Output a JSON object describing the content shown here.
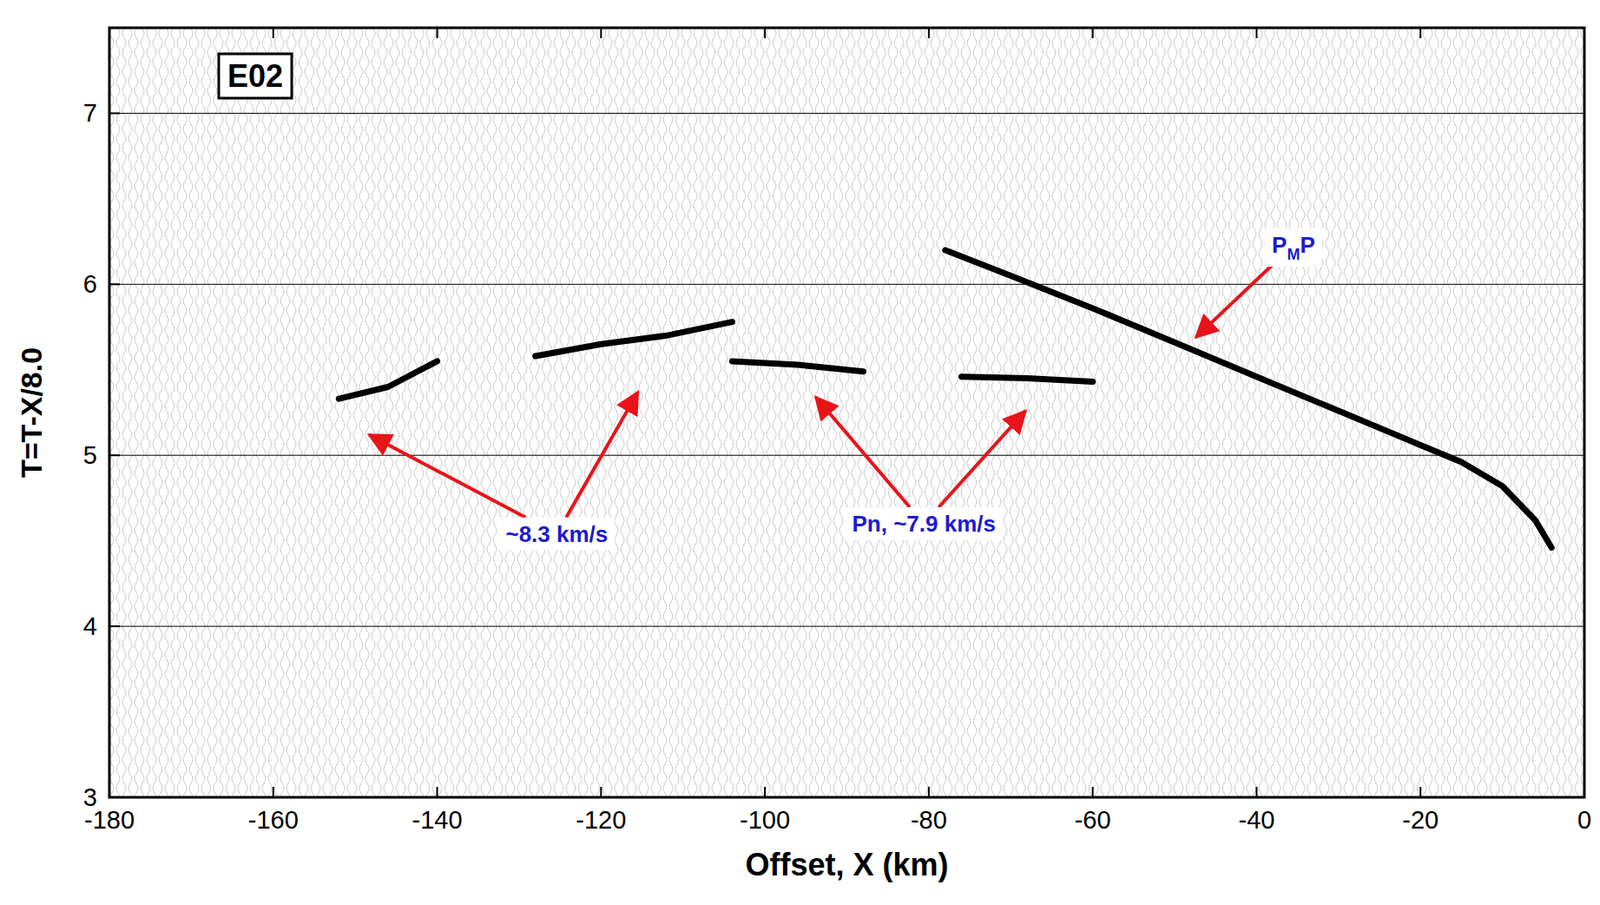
{
  "chart_data": {
    "type": "line",
    "panel_label": "E02",
    "x_label": "Offset, X (km)",
    "y_label": "T=T-X/8.0",
    "xlim": [
      -180,
      0
    ],
    "ylim": [
      3,
      7.5
    ],
    "xticks": [
      -180,
      -160,
      -140,
      -120,
      -100,
      -80,
      -60,
      -40,
      -20,
      0
    ],
    "yticks": [
      3,
      4,
      5,
      6,
      7
    ],
    "grid": true,
    "series": [
      {
        "color": "#000000",
        "x": [
          -78,
          -70,
          -60,
          -50,
          -40,
          -30,
          -20,
          -15,
          -10,
          -6,
          -4
        ],
        "values": [
          6.2,
          6.05,
          5.86,
          5.66,
          5.46,
          5.26,
          5.06,
          4.96,
          4.82,
          4.62,
          4.46
        ]
      },
      {
        "color": "#000000",
        "x": [
          -104,
          -96,
          -88,
          null,
          -76,
          -68,
          -60
        ],
        "values": [
          5.55,
          5.53,
          5.49,
          null,
          5.46,
          5.45,
          5.43
        ]
      },
      {
        "color": "#000000",
        "x": [
          -152,
          -146,
          -140,
          null,
          -128,
          -120,
          -112,
          -104
        ],
        "values": [
          5.33,
          5.4,
          5.55,
          null,
          5.58,
          5.65,
          5.7,
          5.78
        ]
      }
    ],
    "annotations": [
      {
        "text": "PMP",
        "x": -35.5,
        "y": 6.23,
        "targets": [
          [
            -47.4,
            5.69
          ]
        ]
      },
      {
        "text": "~8.3 km/s",
        "x": -125.4,
        "y": 4.54,
        "targets": [
          [
            -148.3,
            5.12
          ],
          [
            -115.5,
            5.37
          ]
        ]
      },
      {
        "text": "Pn, ~7.9 km/s",
        "x": -80.6,
        "y": 4.6,
        "targets": [
          [
            -93.8,
            5.34
          ],
          [
            -68.2,
            5.26
          ]
        ]
      }
    ]
  }
}
